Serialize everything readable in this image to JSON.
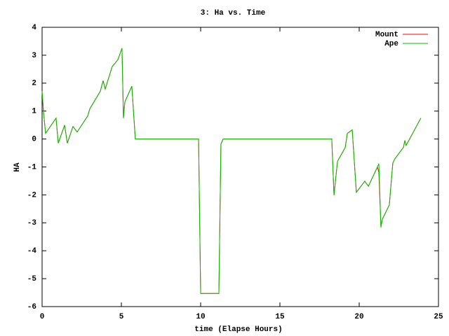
{
  "chart_data": {
    "type": "line",
    "title": "3: Ha vs. Time",
    "x_label": "time (Elapse Hours)",
    "y_label": "HA",
    "x": [
      0,
      0.09,
      0.22,
      0.88,
      1.02,
      1.42,
      1.59,
      1.95,
      2.21,
      2.88,
      3.01,
      3.67,
      3.85,
      3.98,
      4.42,
      4.78,
      5.04,
      5.13,
      5.22,
      5.66,
      5.88,
      9.87,
      10.0,
      11.15,
      11.28,
      11.42,
      18.27,
      18.41,
      18.63,
      19.12,
      19.25,
      19.56,
      19.82,
      20.35,
      20.58,
      21.15,
      21.24,
      21.37,
      21.46,
      21.9,
      22.12,
      22.26,
      22.79,
      22.88,
      22.96,
      23.89
    ],
    "series": [
      {
        "name": "Mount",
        "color": "#ff0000",
        "values": [
          1.71,
          0.96,
          0.2,
          0.75,
          -0.15,
          0.5,
          -0.15,
          0.45,
          0.25,
          0.83,
          1.08,
          1.71,
          2.09,
          1.79,
          2.59,
          2.84,
          3.25,
          0.75,
          1.33,
          1.89,
          0,
          0,
          -5.53,
          -5.53,
          -0.18,
          0,
          0,
          -2.01,
          -0.8,
          -0.3,
          0.2,
          0.33,
          -1.91,
          -1.51,
          -1.69,
          -1.0,
          -1.2,
          -3.12,
          -2.87,
          -2.36,
          -0.86,
          -0.7,
          -0.3,
          -0.05,
          -0.23,
          0.75
        ]
      },
      {
        "name": "Ape",
        "color": "#00c000",
        "values": [
          1.71,
          0.96,
          0.2,
          0.75,
          -0.15,
          0.5,
          -0.15,
          0.45,
          0.25,
          0.83,
          1.08,
          1.71,
          2.09,
          1.79,
          2.59,
          2.84,
          3.25,
          0.75,
          1.33,
          1.89,
          0,
          0,
          -5.53,
          -5.53,
          -0.18,
          0,
          0,
          -2.01,
          -0.8,
          -0.3,
          0.2,
          0.33,
          -1.91,
          -1.51,
          -1.69,
          -1.0,
          -0.88,
          -3.17,
          -2.87,
          -2.36,
          -0.86,
          -0.7,
          -0.3,
          -0.05,
          -0.23,
          0.75
        ]
      }
    ],
    "xlim": [
      0,
      25
    ],
    "xticks": [
      0,
      5,
      10,
      15,
      20,
      25
    ],
    "ylim": [
      -6,
      4
    ],
    "yticks": [
      -6,
      -5,
      -4,
      -3,
      -2,
      -1,
      0,
      1,
      2,
      3,
      4
    ],
    "grid": false,
    "legend": "top-right"
  }
}
